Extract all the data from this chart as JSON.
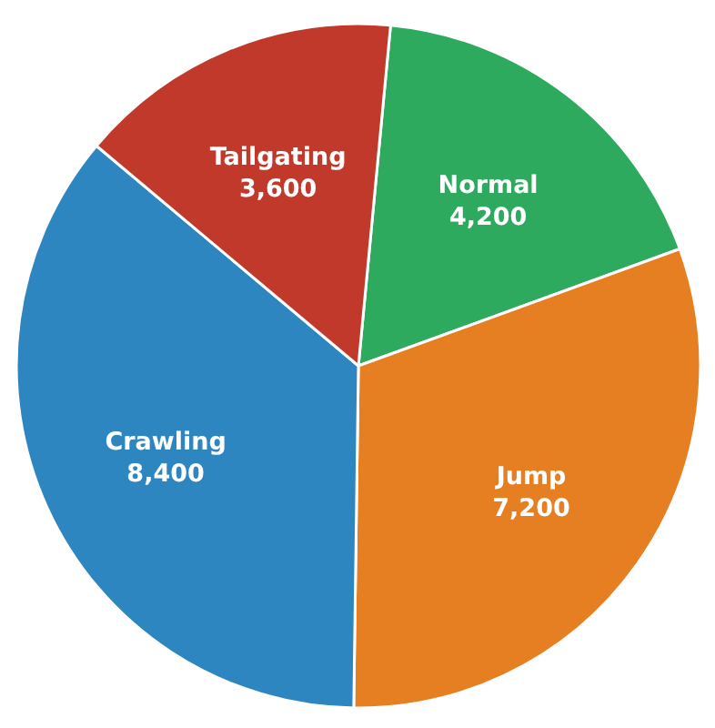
{
  "chart_data": {
    "type": "pie",
    "categories": [
      "Normal",
      "Jump",
      "Crawling",
      "Tailgating"
    ],
    "values": [
      4200,
      7200,
      8400,
      3600
    ],
    "value_labels": [
      "4,200",
      "7,200",
      "8,400",
      "3,600"
    ],
    "colors": [
      "#2eaa5f",
      "#e67e22",
      "#2e86c1",
      "#c0392b"
    ]
  }
}
